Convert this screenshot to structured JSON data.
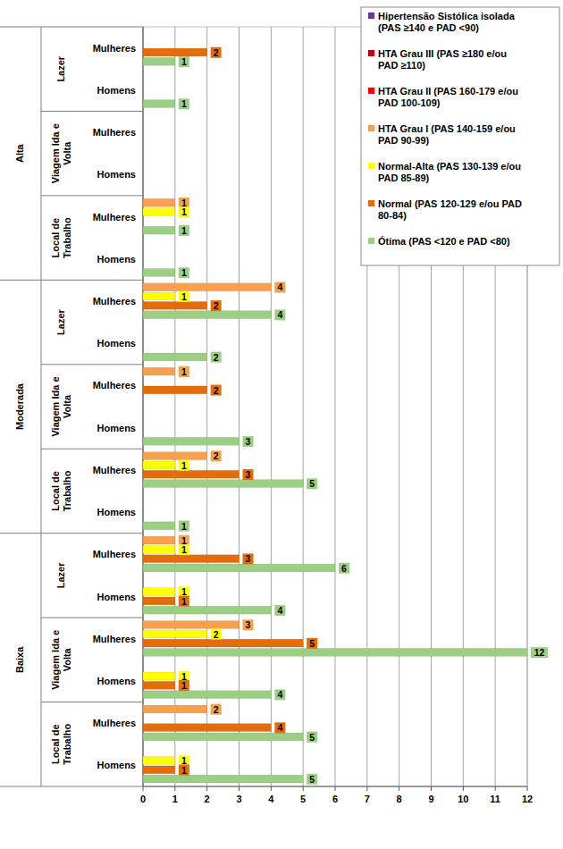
{
  "chart_data": {
    "type": "bar",
    "orientation": "horizontal",
    "data_labels": true,
    "grid": true,
    "legend": "top-right",
    "categories": [
      "Mulheres",
      "Homens",
      "Mulheres",
      "Homens",
      "Mulheres",
      "Homens",
      "Mulheres",
      "Homens",
      "Mulheres",
      "Homens",
      "Mulheres",
      "Homens",
      "Mulheres",
      "Homens",
      "Mulheres",
      "Homens",
      "Mulheres",
      "Homens"
    ],
    "category_groups": [
      {
        "label": "Alta",
        "subgroups": [
          "Lazer",
          "Viagem Ida e Volta",
          "Local de Trabalho"
        ]
      },
      {
        "label": "Moderada",
        "subgroups": [
          "Lazer",
          "Viagem Ida e Volta",
          "Local de Trabalho"
        ]
      },
      {
        "label": "Baixa",
        "subgroups": [
          "Lazer",
          "Viagem Ida e Volta",
          "Local de Trabalho"
        ]
      }
    ],
    "xlim": [
      0,
      12
    ],
    "xticks": [
      0,
      1,
      2,
      3,
      4,
      5,
      6,
      7,
      8,
      9,
      10,
      11,
      12
    ],
    "series": [
      {
        "name": "Hipertensão Sistólica isolada (PAS ≥140 e PAD <90)",
        "color": "#7030a0",
        "values": [
          null,
          null,
          null,
          null,
          null,
          null,
          null,
          null,
          null,
          null,
          null,
          null,
          null,
          null,
          null,
          null,
          null,
          null
        ]
      },
      {
        "name": "HTA Grau III (PAS ≥180 e/ou PAD ≥110)",
        "color": "#c00000",
        "values": [
          null,
          null,
          null,
          null,
          null,
          null,
          null,
          null,
          null,
          null,
          null,
          null,
          null,
          null,
          null,
          null,
          null,
          null
        ]
      },
      {
        "name": "HTA Grau II (PAS 160-179 e/ou PAD 100-109)",
        "color": "#ff0000",
        "values": [
          null,
          null,
          null,
          null,
          null,
          null,
          null,
          null,
          null,
          null,
          null,
          null,
          null,
          null,
          null,
          null,
          null,
          null
        ]
      },
      {
        "name": "HTA Grau I (PAS 140-159 e/ou PAD 90-99)",
        "color": "#f9a04e",
        "values": [
          null,
          null,
          null,
          null,
          1,
          null,
          4,
          null,
          1,
          null,
          2,
          null,
          1,
          null,
          3,
          null,
          2,
          null
        ]
      },
      {
        "name": "Normal-Alta (PAS 130-139 e/ou PAD 85-89)",
        "color": "#ffff00",
        "values": [
          null,
          null,
          null,
          null,
          1,
          null,
          1,
          null,
          null,
          null,
          1,
          null,
          1,
          1,
          2,
          1,
          null,
          1
        ]
      },
      {
        "name": "Normal (PAS 120-129 e/ou PAD 80-84)",
        "color": "#e46c0a",
        "values": [
          2,
          null,
          null,
          null,
          null,
          null,
          2,
          null,
          2,
          null,
          3,
          null,
          3,
          1,
          5,
          1,
          4,
          1
        ]
      },
      {
        "name": "Ótima (PAS <120  e PAD <80)",
        "color": "#9bcf84",
        "values": [
          1,
          1,
          null,
          null,
          1,
          1,
          4,
          2,
          null,
          3,
          5,
          1,
          6,
          4,
          12,
          4,
          5,
          5
        ]
      }
    ]
  }
}
